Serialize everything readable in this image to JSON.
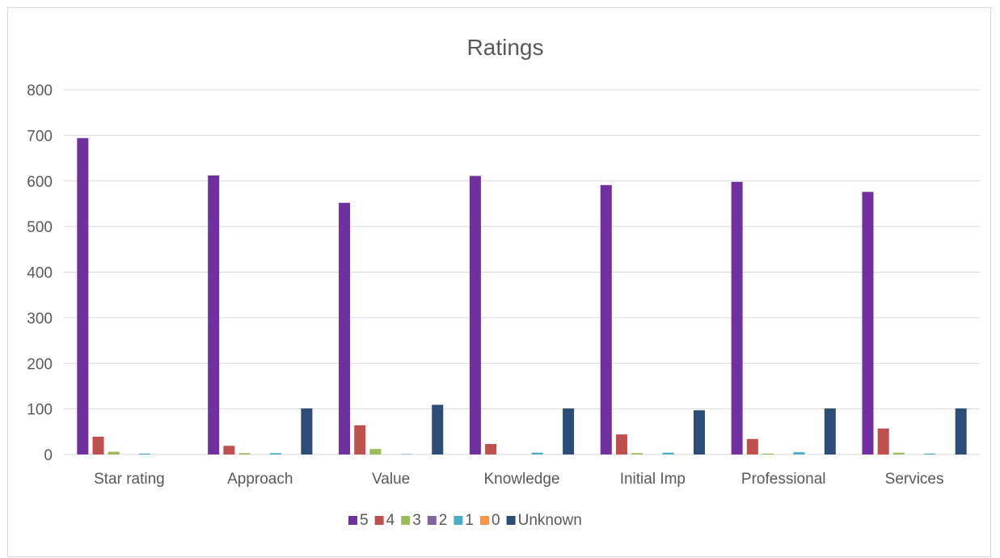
{
  "chart_data": {
    "type": "bar",
    "title": "Ratings",
    "xlabel": "",
    "ylabel": "",
    "ylim": [
      0,
      800
    ],
    "yticks": [
      0,
      100,
      200,
      300,
      400,
      500,
      600,
      700,
      800
    ],
    "grid": true,
    "legend_position": "bottom",
    "categories": [
      "Star rating",
      "Approach",
      "Value",
      "Knowledge",
      "Initial Imp",
      "Professional",
      "Services"
    ],
    "series": [
      {
        "name": "5",
        "color": "#7030a0",
        "values": [
          694,
          612,
          552,
          611,
          591,
          598,
          576
        ]
      },
      {
        "name": "4",
        "color": "#c0504d",
        "values": [
          39,
          19,
          64,
          23,
          44,
          34,
          57
        ]
      },
      {
        "name": "3",
        "color": "#9bbb59",
        "values": [
          6,
          3,
          12,
          0,
          3,
          2,
          4
        ]
      },
      {
        "name": "2",
        "color": "#8064a2",
        "values": [
          0,
          0,
          0,
          0,
          0,
          0,
          0
        ]
      },
      {
        "name": "1",
        "color": "#4bacc6",
        "values": [
          2,
          3,
          1,
          4,
          4,
          5,
          2
        ]
      },
      {
        "name": "0",
        "color": "#f79646",
        "values": [
          0,
          0,
          0,
          0,
          0,
          0,
          0
        ]
      },
      {
        "name": "Unknown",
        "color": "#2c4d75",
        "values": [
          0,
          101,
          109,
          101,
          97,
          101,
          101
        ]
      }
    ]
  }
}
